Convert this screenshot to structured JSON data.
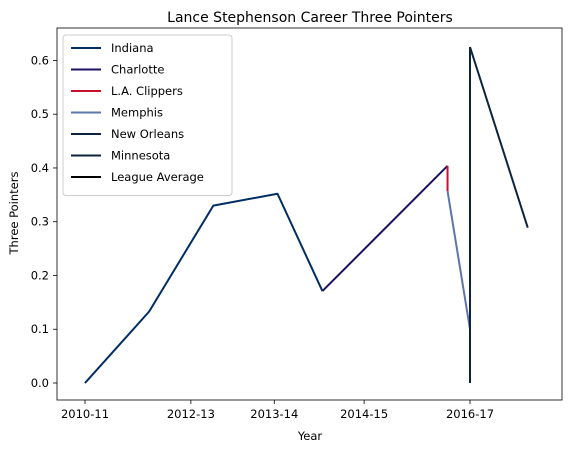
{
  "chart_data": {
    "type": "line",
    "title": "Lance Stephenson Career Three Pointers",
    "xlabel": "Year",
    "ylabel": "Three Pointers",
    "x_ticks": [
      "2010-11",
      "2012-13",
      "2013-14",
      "2014-15",
      "2016-17"
    ],
    "y_ticks": [
      "0.0",
      "0.1",
      "0.2",
      "0.3",
      "0.4",
      "0.5",
      "0.6"
    ],
    "ylim": [
      -0.03,
      0.66
    ],
    "grid": false,
    "legend_position": "top-left",
    "series": [
      {
        "name": "Indiana",
        "color": "#002D62",
        "points": [
          [
            0,
            0.0
          ],
          [
            1,
            0.133
          ],
          [
            2,
            0.33
          ],
          [
            3,
            0.352
          ],
          [
            4,
            0.171
          ]
        ]
      },
      {
        "name": "Charlotte",
        "color": "#1D1160",
        "points": [
          [
            4,
            0.171
          ],
          [
            5,
            0.404
          ]
        ]
      },
      {
        "name": "L.A. Clippers",
        "color": "#C8102E",
        "points": [
          [
            5,
            0.404
          ],
          [
            5,
            0.357
          ]
        ]
      },
      {
        "name": "Memphis",
        "color": "#5D76A9",
        "points": [
          [
            5,
            0.357
          ],
          [
            6,
            0.1
          ]
        ]
      },
      {
        "name": "New Orleans",
        "color": "#0C2340",
        "points": [
          [
            6,
            0.0
          ],
          [
            6,
            0.625
          ]
        ]
      },
      {
        "name": "Minnesota",
        "color": "#0C2340",
        "points": [
          [
            6,
            0.625
          ],
          [
            7,
            0.289
          ]
        ]
      },
      {
        "name": "League Average",
        "color": "#000000",
        "points": []
      }
    ]
  }
}
